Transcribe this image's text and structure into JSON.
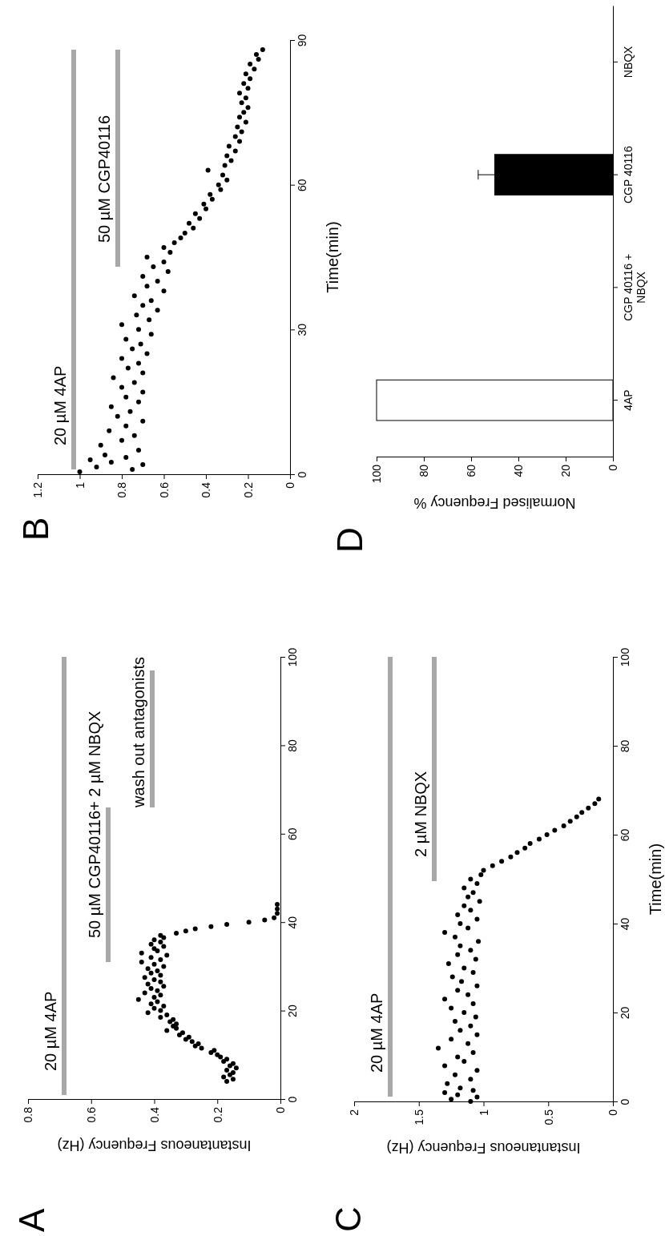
{
  "chart_data": [
    {
      "type": "scatter",
      "title": "A",
      "xlabel": "Instantaneous Frequency (Hz)",
      "xlim": [
        0.8,
        0
      ],
      "xticks": [
        0.8,
        0.6,
        0.4,
        0.2,
        0
      ],
      "ylim": [
        0,
        100
      ],
      "yticks": [
        0,
        20,
        40,
        60,
        80,
        100
      ],
      "color": "#000000",
      "marker": "circle",
      "x": [
        0.17,
        0.15,
        0.18,
        0.16,
        0.15,
        0.17,
        0.14,
        0.16,
        0.15,
        0.18,
        0.17,
        0.19,
        0.2,
        0.22,
        0.21,
        0.25,
        0.27,
        0.26,
        0.28,
        0.3,
        0.29,
        0.32,
        0.31,
        0.36,
        0.33,
        0.34,
        0.33,
        0.35,
        0.34,
        0.38,
        0.36,
        0.42,
        0.38,
        0.4,
        0.37,
        0.41,
        0.39,
        0.45,
        0.4,
        0.38,
        0.43,
        0.39,
        0.41,
        0.37,
        0.42,
        0.38,
        0.4,
        0.43,
        0.38,
        0.41,
        0.39,
        0.42,
        0.37,
        0.4,
        0.44,
        0.38,
        0.41,
        0.36,
        0.44,
        0.39,
        0.4,
        0.37,
        0.41,
        0.38,
        0.4,
        0.37,
        0.38,
        0.33,
        0.3,
        0.27,
        0.22,
        0.17,
        0.1,
        0.05,
        0.02,
        0.01,
        0.01,
        0.01
      ],
      "values": [
        4,
        4.5,
        5,
        5.5,
        6,
        6.5,
        7,
        7.5,
        8,
        8.5,
        9,
        9.5,
        10,
        10.5,
        11,
        11.5,
        12,
        12.5,
        13,
        13.5,
        14,
        14.5,
        15,
        15.5,
        16,
        16.5,
        17,
        17.5,
        18,
        18.5,
        19,
        19.5,
        20,
        20.5,
        21,
        21.5,
        22,
        22.5,
        23,
        23.5,
        24,
        24.5,
        25,
        25.5,
        26,
        26.5,
        27,
        27.5,
        28,
        28.5,
        29,
        29.5,
        30,
        30.5,
        31,
        31.5,
        32,
        32.5,
        33,
        33.5,
        34,
        34.5,
        35,
        35.5,
        36,
        36.5,
        37,
        37.5,
        38,
        38.5,
        39,
        39.5,
        40,
        40.5,
        41,
        42,
        43,
        44
      ],
      "annotations": [
        "20 µM 4AP",
        "50 µM CGP40116+ 2 µM NBQX",
        "wash out antagonists"
      ]
    },
    {
      "type": "scatter",
      "title": "B",
      "ylabel": "Time(min)",
      "xlim": [
        1.2,
        0
      ],
      "xticks": [
        1.2,
        1,
        0.8,
        0.6,
        0.4,
        0.2,
        0
      ],
      "ylim": [
        0,
        90
      ],
      "yticks": [
        0,
        30,
        60,
        90
      ],
      "color": "#000000",
      "marker": "circle",
      "x": [
        1.0,
        0.75,
        0.92,
        0.7,
        0.85,
        0.95,
        0.78,
        0.88,
        0.72,
        0.9,
        0.8,
        0.74,
        0.86,
        0.78,
        0.7,
        0.82,
        0.76,
        0.85,
        0.72,
        0.78,
        0.7,
        0.8,
        0.74,
        0.84,
        0.7,
        0.77,
        0.72,
        0.8,
        0.68,
        0.75,
        0.71,
        0.78,
        0.66,
        0.72,
        0.8,
        0.67,
        0.73,
        0.63,
        0.7,
        0.66,
        0.74,
        0.6,
        0.68,
        0.63,
        0.7,
        0.58,
        0.65,
        0.6,
        0.68,
        0.57,
        0.6,
        0.55,
        0.52,
        0.5,
        0.46,
        0.48,
        0.43,
        0.45,
        0.4,
        0.41,
        0.37,
        0.38,
        0.33,
        0.34,
        0.3,
        0.32,
        0.39,
        0.31,
        0.28,
        0.3,
        0.26,
        0.29,
        0.24,
        0.26,
        0.23,
        0.25,
        0.21,
        0.24,
        0.22,
        0.2,
        0.23,
        0.21,
        0.24,
        0.2,
        0.22,
        0.19,
        0.21,
        0.17,
        0.19,
        0.15,
        0.16,
        0.13
      ],
      "values": [
        0.5,
        1,
        1.5,
        2,
        2.5,
        3,
        3.5,
        4,
        5,
        6,
        7,
        8,
        9,
        10,
        11,
        12,
        13,
        14,
        15,
        16,
        17,
        18,
        19,
        20,
        21,
        22,
        23,
        24,
        25,
        26,
        27,
        28,
        29,
        30,
        31,
        32,
        33,
        34,
        35,
        36,
        37,
        38,
        39,
        40,
        41,
        42,
        43,
        44,
        45,
        46,
        47,
        48,
        49,
        50,
        51,
        52,
        53,
        54,
        55,
        56,
        57,
        58,
        59,
        60,
        61,
        62,
        63,
        64,
        65,
        66,
        67,
        68,
        69,
        70,
        71,
        72,
        73,
        74,
        75,
        76,
        77,
        78,
        79,
        80,
        81,
        82,
        83,
        84,
        85,
        86,
        87,
        88
      ],
      "annotations": [
        "20 µM 4AP",
        "50 µM CGP40116"
      ]
    },
    {
      "type": "scatter",
      "title": "C",
      "xlabel": "Instantaneous Frequency (Hz)",
      "ylabel": "Time(min)",
      "xlim": [
        2,
        0
      ],
      "xticks": [
        2,
        1.5,
        1,
        0.5,
        0
      ],
      "ylim": [
        0,
        100
      ],
      "yticks": [
        0,
        20,
        40,
        60,
        80,
        100
      ],
      "color": "#000000",
      "marker": "circle",
      "x": [
        1.1,
        1.25,
        1.05,
        1.2,
        1.3,
        1.08,
        1.18,
        1.28,
        1.1,
        1.22,
        1.05,
        1.3,
        1.15,
        1.2,
        1.08,
        1.35,
        1.12,
        1.25,
        1.05,
        1.18,
        1.1,
        1.22,
        1.06,
        1.15,
        1.25,
        1.08,
        1.3,
        1.12,
        1.2,
        1.05,
        1.17,
        1.24,
        1.08,
        1.15,
        1.27,
        1.06,
        1.2,
        1.1,
        1.18,
        1.04,
        1.22,
        1.3,
        1.12,
        1.18,
        1.05,
        1.2,
        1.1,
        1.15,
        1.03,
        1.12,
        1.08,
        1.15,
        1.05,
        1.1,
        1.02,
        1.0,
        0.93,
        0.86,
        0.79,
        0.74,
        0.68,
        0.64,
        0.57,
        0.51,
        0.45,
        0.38,
        0.33,
        0.28,
        0.24,
        0.19,
        0.14,
        0.11
      ],
      "values": [
        0,
        0.5,
        1,
        1.5,
        2,
        2.5,
        3,
        4,
        5,
        6,
        7,
        8,
        9,
        10,
        11,
        12,
        13,
        14,
        15,
        16,
        17,
        18,
        19,
        20,
        21,
        22,
        23,
        24,
        25,
        26,
        27,
        28,
        29,
        30,
        31,
        32,
        33,
        34,
        35,
        36,
        37,
        38,
        39,
        40,
        41,
        42,
        43,
        44,
        45,
        46,
        47,
        48,
        49,
        50,
        51,
        52,
        53,
        54,
        55,
        56,
        57,
        58,
        59,
        60,
        61,
        62,
        63,
        64,
        65,
        66,
        67,
        68
      ],
      "annotations": [
        "20 µM 4AP",
        "2 µM NBQX"
      ]
    },
    {
      "type": "bar",
      "orientation": "horizontal",
      "title": "D",
      "xlabel": "Normalised Frequency %",
      "categories": [
        "NBQX",
        "CGP 40116",
        "CGP 40116 +\nNBQX",
        "4AP"
      ],
      "values": [
        0,
        50,
        0,
        100
      ],
      "colors": [
        "#000000",
        "#000000",
        "#000000",
        "#ffffff"
      ],
      "errors": [
        null,
        7,
        null,
        null
      ],
      "xlim": [
        100,
        0
      ],
      "xticks": [
        100,
        80,
        60,
        40,
        20,
        0
      ]
    }
  ]
}
